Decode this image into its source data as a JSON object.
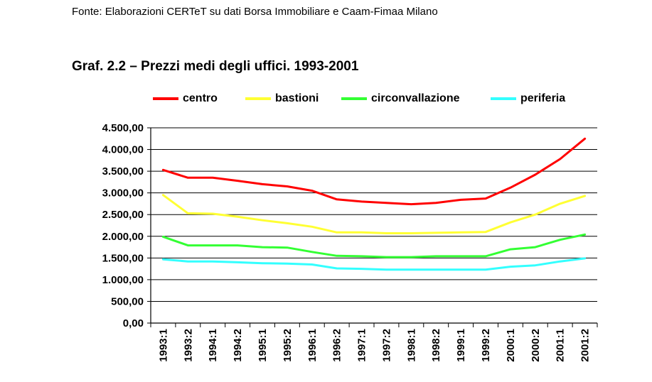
{
  "source_note": "Fonte: Elaborazioni CERTeT su dati Borsa Immobiliare e Caam-Fimaa Milano",
  "chart_data": {
    "type": "line",
    "title": "Graf. 2.2 – Prezzi medi degli uffici. 1993-2001",
    "xlabel": "",
    "ylabel": "",
    "ylim": [
      0,
      4500
    ],
    "ytick_labels": [
      "0,00",
      "500,00",
      "1.000,00",
      "1.500,00",
      "2.000,00",
      "2.500,00",
      "3.000,00",
      "3.500,00",
      "4.000,00",
      "4.500,00"
    ],
    "grid": "horizontal",
    "legend_position": "top",
    "categories": [
      "1993:1",
      "1993:2",
      "1994:1",
      "1994:2",
      "1995:1",
      "1995:2",
      "1996:1",
      "1996:2",
      "1997:1",
      "1997:2",
      "1998:1",
      "1998:2",
      "1999:1",
      "1999:2",
      "2000:1",
      "2000:2",
      "2001:1",
      "2001:2"
    ],
    "series": [
      {
        "name": "centro",
        "color": "#ff0000",
        "values": [
          3530,
          3350,
          3350,
          3280,
          3200,
          3150,
          3050,
          2850,
          2800,
          2770,
          2740,
          2770,
          2840,
          2870,
          3120,
          3420,
          3780,
          4250
        ]
      },
      {
        "name": "bastioni",
        "color": "#ffff33",
        "values": [
          2950,
          2530,
          2520,
          2450,
          2370,
          2300,
          2220,
          2090,
          2090,
          2070,
          2070,
          2080,
          2090,
          2100,
          2320,
          2500,
          2750,
          2930
        ]
      },
      {
        "name": "circonvallazione",
        "color": "#33ff33",
        "values": [
          1990,
          1790,
          1790,
          1790,
          1750,
          1740,
          1640,
          1550,
          1540,
          1520,
          1520,
          1540,
          1540,
          1540,
          1700,
          1750,
          1920,
          2040
        ]
      },
      {
        "name": "periferia",
        "color": "#33ffff",
        "values": [
          1470,
          1420,
          1420,
          1400,
          1380,
          1370,
          1350,
          1260,
          1250,
          1230,
          1230,
          1230,
          1230,
          1230,
          1300,
          1330,
          1420,
          1490
        ]
      }
    ]
  }
}
